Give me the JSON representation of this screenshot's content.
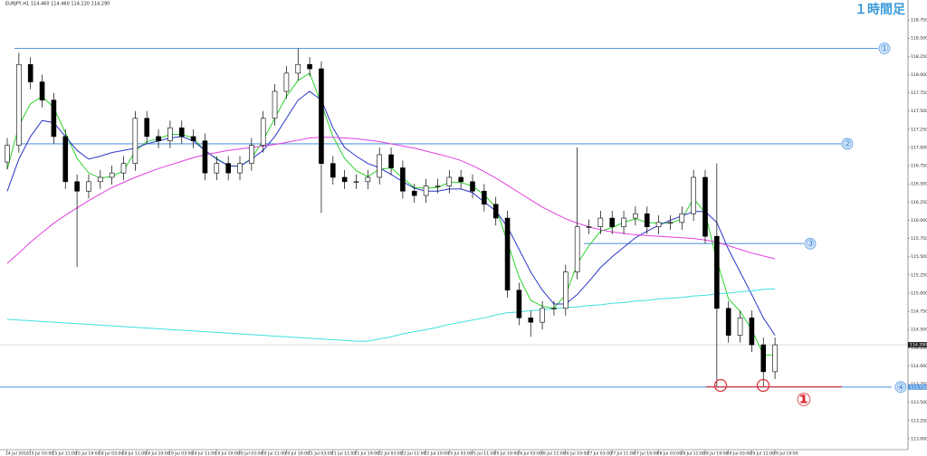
{
  "chart_data": {
    "type": "candlestick",
    "header": "EURJPY,H1 114.460 114.460 114.220 114.290",
    "badge": "１時間足",
    "annotation": "①",
    "categories": [
      "14 Jul 2016",
      null,
      "15 Jul 03:00",
      null,
      "15 Jul 11:00",
      null,
      "15 Jul 19:00",
      null,
      "18 Jul 03:00",
      null,
      "18 Jul 11:00",
      null,
      "18 Jul 19:00",
      null,
      "19 Jul 03:00",
      null,
      "19 Jul 11:00",
      null,
      "19 Jul 19:00",
      null,
      "20 Jul 03:00",
      null,
      "20 Jul 11:00",
      null,
      "20 Jul 19:00",
      null,
      "21 Jul 03:00",
      null,
      "21 Jul 11:00",
      null,
      "21 Jul 19:00",
      null,
      "22 Jul 03:00",
      null,
      "22 Jul 11:00",
      null,
      "22 Jul 19:00",
      null,
      "25 Jul 03:00",
      null,
      "25 Jul 11:00",
      null,
      "25 Jul 19:00",
      null,
      "26 Jul 03:00",
      null,
      "26 Jul 11:00",
      null,
      "26 Jul 19:00",
      null,
      "27 Jul 03:00",
      null,
      "27 Jul 11:00",
      null,
      "27 Jul 19:00",
      null,
      "28 Jul 03:00",
      null,
      "28 Jul 11:00",
      null,
      "28 Jul 19:00",
      null,
      "29 Jul 03:00",
      null,
      "29 Jul 11:00",
      null,
      "29 Jul 19:00"
    ],
    "open": [
      116.8,
      117.03,
      118.14,
      117.9,
      117.65,
      117.15,
      116.53,
      116.4,
      116.53,
      116.59,
      116.65,
      116.78,
      117.4,
      117.15,
      117.09,
      117.27,
      117.15,
      117.09,
      116.65,
      116.78,
      116.65,
      116.78,
      117.03,
      117.4,
      117.77,
      118.02,
      118.14,
      118.08,
      116.78,
      116.59,
      116.53,
      116.53,
      116.59,
      116.9,
      116.72,
      116.4,
      116.34,
      116.47,
      116.47,
      116.59,
      116.53,
      116.4,
      116.22,
      116.03,
      115.04,
      114.66,
      114.6,
      114.79,
      114.79,
      115.29,
      115.91,
      115.91,
      116.03,
      115.91,
      116.03,
      116.09,
      115.91,
      115.97,
      115.97,
      116.09,
      116.59,
      115.78,
      114.79,
      114.42,
      114.66,
      114.29,
      113.92
    ],
    "high": [
      117.13,
      118.3,
      118.24,
      118.0,
      117.75,
      117.25,
      116.63,
      116.63,
      116.69,
      116.75,
      116.88,
      117.5,
      117.5,
      117.25,
      117.37,
      117.37,
      117.25,
      117.19,
      116.88,
      116.88,
      116.88,
      117.13,
      117.5,
      117.87,
      118.12,
      118.36,
      118.24,
      118.18,
      116.88,
      116.69,
      116.63,
      116.69,
      117.0,
      117.0,
      116.82,
      116.5,
      116.57,
      116.57,
      116.69,
      116.69,
      116.63,
      116.5,
      116.32,
      116.13,
      115.14,
      114.76,
      114.89,
      114.89,
      115.39,
      117.0,
      116.01,
      116.13,
      116.13,
      116.13,
      116.19,
      116.19,
      116.07,
      116.07,
      116.19,
      116.69,
      116.69,
      116.78,
      114.89,
      114.76,
      114.76,
      114.39,
      114.39
    ],
    "low": [
      116.7,
      116.93,
      117.8,
      117.55,
      117.05,
      116.43,
      115.36,
      116.3,
      116.43,
      116.49,
      116.55,
      116.68,
      117.05,
      116.99,
      116.99,
      117.05,
      116.99,
      116.55,
      116.55,
      116.55,
      116.55,
      116.68,
      116.93,
      117.3,
      117.67,
      117.92,
      117.98,
      116.1,
      116.49,
      116.43,
      116.43,
      116.43,
      116.49,
      116.62,
      116.3,
      116.24,
      116.24,
      116.37,
      116.37,
      116.43,
      116.3,
      116.12,
      115.93,
      114.94,
      114.56,
      114.4,
      114.5,
      114.69,
      114.69,
      115.19,
      115.81,
      115.81,
      115.81,
      115.81,
      115.93,
      115.81,
      115.81,
      115.87,
      115.87,
      115.99,
      115.68,
      113.72,
      114.32,
      114.32,
      114.19,
      113.72,
      113.82
    ],
    "close": [
      117.03,
      118.14,
      117.9,
      117.65,
      117.15,
      116.53,
      116.4,
      116.53,
      116.59,
      116.65,
      116.78,
      117.4,
      117.15,
      117.09,
      117.27,
      117.15,
      117.09,
      116.65,
      116.78,
      116.65,
      116.78,
      117.03,
      117.4,
      117.77,
      118.02,
      118.14,
      118.08,
      116.78,
      116.59,
      116.53,
      116.53,
      116.59,
      116.9,
      116.72,
      116.4,
      116.34,
      116.47,
      116.47,
      116.59,
      116.53,
      116.4,
      116.22,
      116.03,
      115.04,
      114.66,
      114.6,
      114.79,
      114.79,
      115.29,
      115.91,
      115.91,
      116.03,
      115.91,
      116.03,
      116.09,
      115.91,
      115.97,
      115.97,
      116.09,
      116.59,
      115.78,
      114.79,
      114.42,
      114.66,
      114.29,
      113.92,
      114.29
    ],
    "series": [
      {
        "color": "#2bd12b",
        "values": [
          116.7,
          117.3,
          117.6,
          117.7,
          117.55,
          117.2,
          116.85,
          116.65,
          116.58,
          116.6,
          116.68,
          116.95,
          117.08,
          117.12,
          117.18,
          117.18,
          117.13,
          116.95,
          116.85,
          116.75,
          116.74,
          116.85,
          117.1,
          117.4,
          117.7,
          117.92,
          118.02,
          117.6,
          117.15,
          116.85,
          116.68,
          116.6,
          116.7,
          116.72,
          116.58,
          116.45,
          116.44,
          116.45,
          116.52,
          116.52,
          116.47,
          116.35,
          116.18,
          115.7,
          115.22,
          114.9,
          114.82,
          114.79,
          114.98,
          115.4,
          115.65,
          115.85,
          115.9,
          115.97,
          116.02,
          115.97,
          115.96,
          115.96,
          116.02,
          116.3,
          116.1,
          115.45,
          114.92,
          114.75,
          114.5,
          114.15,
          114.15
        ]
      },
      {
        "color": "#2a35c8",
        "values": [
          116.4,
          116.84,
          117.15,
          117.37,
          117.34,
          117.15,
          116.96,
          116.84,
          116.88,
          116.93,
          116.96,
          116.99,
          117.05,
          117.09,
          117.13,
          117.15,
          117.09,
          116.96,
          116.84,
          116.75,
          116.74,
          116.84,
          116.96,
          117.15,
          117.4,
          117.65,
          117.77,
          117.65,
          117.27,
          117.0,
          116.88,
          116.78,
          116.72,
          116.63,
          116.53,
          116.44,
          116.4,
          116.4,
          116.43,
          116.43,
          116.38,
          116.25,
          116.13,
          115.91,
          115.6,
          115.29,
          115.04,
          114.85,
          114.85,
          114.98,
          115.16,
          115.35,
          115.5,
          115.63,
          115.76,
          115.85,
          115.93,
          116.0,
          116.06,
          116.12,
          116.12,
          115.97,
          115.6,
          115.29,
          114.98,
          114.66,
          114.42
        ]
      },
      {
        "color": "#e040e0",
        "values": [
          115.41,
          115.55,
          115.7,
          115.83,
          115.96,
          116.07,
          116.17,
          116.27,
          116.36,
          116.45,
          116.52,
          116.59,
          116.65,
          116.71,
          116.76,
          116.81,
          116.86,
          116.9,
          116.93,
          116.96,
          116.98,
          117.0,
          117.02,
          117.04,
          117.07,
          117.1,
          117.13,
          117.14,
          117.14,
          117.13,
          117.12,
          117.1,
          117.08,
          117.05,
          117.02,
          116.99,
          116.95,
          116.91,
          116.87,
          116.82,
          116.75,
          116.67,
          116.58,
          116.48,
          116.38,
          116.28,
          116.18,
          116.1,
          116.02,
          115.96,
          115.91,
          115.87,
          115.84,
          115.82,
          115.8,
          115.79,
          115.78,
          115.77,
          115.76,
          115.75,
          115.73,
          115.7,
          115.65,
          115.6,
          115.55,
          115.51,
          115.47
        ]
      },
      {
        "color": "#3fe0e0",
        "values": [
          114.64,
          114.63,
          114.62,
          114.61,
          114.6,
          114.59,
          114.58,
          114.57,
          114.56,
          114.55,
          114.54,
          114.53,
          114.52,
          114.51,
          114.5,
          114.49,
          114.48,
          114.47,
          114.46,
          114.45,
          114.44,
          114.43,
          114.42,
          114.41,
          114.4,
          114.39,
          114.38,
          114.37,
          114.36,
          114.35,
          114.34,
          114.34,
          114.37,
          114.4,
          114.44,
          114.47,
          114.5,
          114.53,
          114.57,
          114.6,
          114.63,
          114.66,
          114.7,
          114.73,
          114.74,
          114.76,
          114.77,
          114.79,
          114.8,
          114.81,
          114.83,
          114.84,
          114.86,
          114.87,
          114.89,
          114.9,
          114.92,
          114.93,
          114.94,
          114.96,
          114.97,
          114.99,
          115.0,
          115.02,
          115.03,
          115.05,
          115.06
        ]
      }
    ],
    "levels": [
      {
        "label": "①",
        "value": 118.36
      },
      {
        "label": "②",
        "value": 117.05
      },
      {
        "label": "③",
        "value": 115.68
      },
      {
        "label": "④",
        "value": 113.71,
        "value_label": "113.710"
      }
    ],
    "bid": {
      "value": 114.29,
      "label": "114.290"
    },
    "ylim": [
      112.85,
      119.0
    ],
    "yticks": [
      {
        "value": 113.0,
        "label": "113.000"
      },
      {
        "value": 113.25,
        "label": "113.250"
      },
      {
        "value": 113.5,
        "label": "113.500"
      },
      {
        "value": 113.75,
        "label": "113.750"
      },
      {
        "value": 114.0,
        "label": "114.000"
      },
      {
        "value": 114.25,
        "label": "114.250"
      },
      {
        "value": 114.5,
        "label": "114.500"
      },
      {
        "value": 114.75,
        "label": "114.750"
      },
      {
        "value": 115.0,
        "label": "115.000"
      },
      {
        "value": 115.25,
        "label": "115.250"
      },
      {
        "value": 115.5,
        "label": "115.500"
      },
      {
        "value": 115.75,
        "label": "115.750"
      },
      {
        "value": 116.0,
        "label": "116.000"
      },
      {
        "value": 116.25,
        "label": "116.250"
      },
      {
        "value": 116.5,
        "label": "116.500"
      },
      {
        "value": 116.75,
        "label": "116.750"
      },
      {
        "value": 117.0,
        "label": "117.000"
      },
      {
        "value": 117.25,
        "label": "117.250"
      },
      {
        "value": 117.5,
        "label": "117.500"
      },
      {
        "value": 117.75,
        "label": "117.750"
      },
      {
        "value": 118.0,
        "label": "118.000"
      },
      {
        "value": 118.25,
        "label": "118.250"
      },
      {
        "value": 118.5,
        "label": "118.500"
      },
      {
        "value": 118.75,
        "label": "118.750"
      }
    ]
  }
}
